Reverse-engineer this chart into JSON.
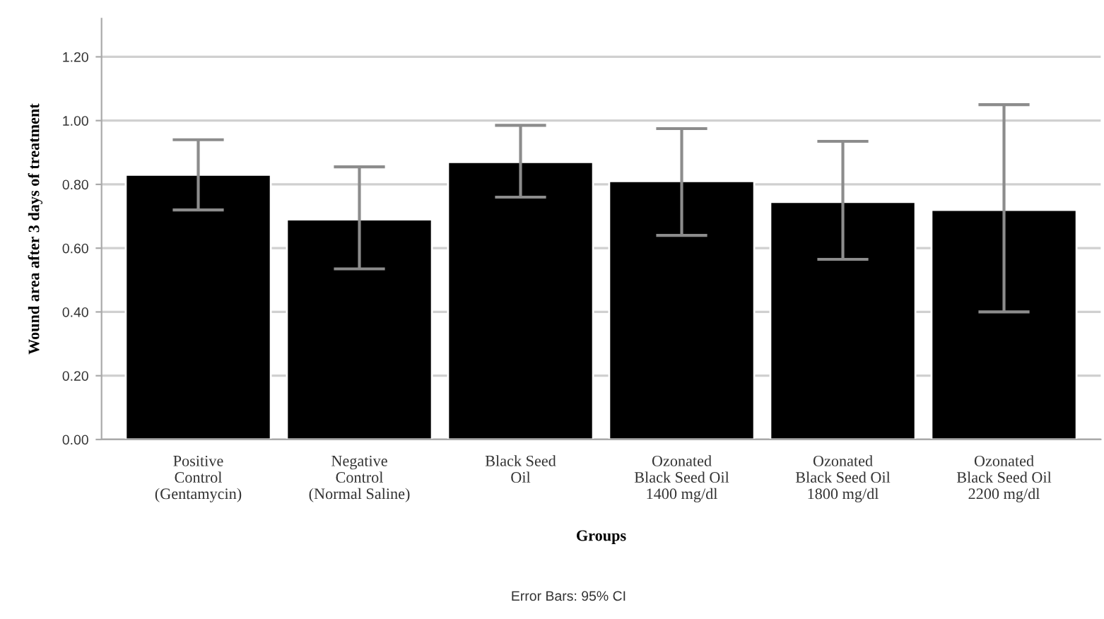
{
  "chart_data": {
    "type": "bar",
    "categories": [
      "Positive\nControl\n(Gentamycin)",
      "Negative\nControl\n(Normal Saline)",
      "Black Seed\nOil",
      "Ozonated\nBlack Seed Oil\n1400 mg/dl",
      "Ozonated\nBlack Seed Oil\n1800 mg/dl",
      "Ozonated\nBlack Seed Oil\n2200 mg/dl"
    ],
    "values": [
      0.83,
      0.69,
      0.87,
      0.81,
      0.745,
      0.72
    ],
    "errors": [
      [
        0.72,
        0.94
      ],
      [
        0.535,
        0.855
      ],
      [
        0.76,
        0.985
      ],
      [
        0.64,
        0.975
      ],
      [
        0.565,
        0.935
      ],
      [
        0.4,
        1.05
      ]
    ],
    "color": "#000000",
    "xlabel": "Groups",
    "ylabel": "Wound area after 3 days of treatment",
    "ylim": [
      0,
      1.32
    ],
    "yticks": [
      {
        "value": 0,
        "label": "0.00"
      },
      {
        "value": 0.2,
        "label": "0.20"
      },
      {
        "value": 0.4,
        "label": "0.40"
      },
      {
        "value": 0.6,
        "label": "0.60"
      },
      {
        "value": 0.8,
        "label": "0.80"
      },
      {
        "value": 1.0,
        "label": "1.00"
      },
      {
        "value": 1.2,
        "label": "1.20"
      }
    ],
    "grid": "y",
    "annotations": [
      "Error Bars: 95% CI"
    ]
  }
}
